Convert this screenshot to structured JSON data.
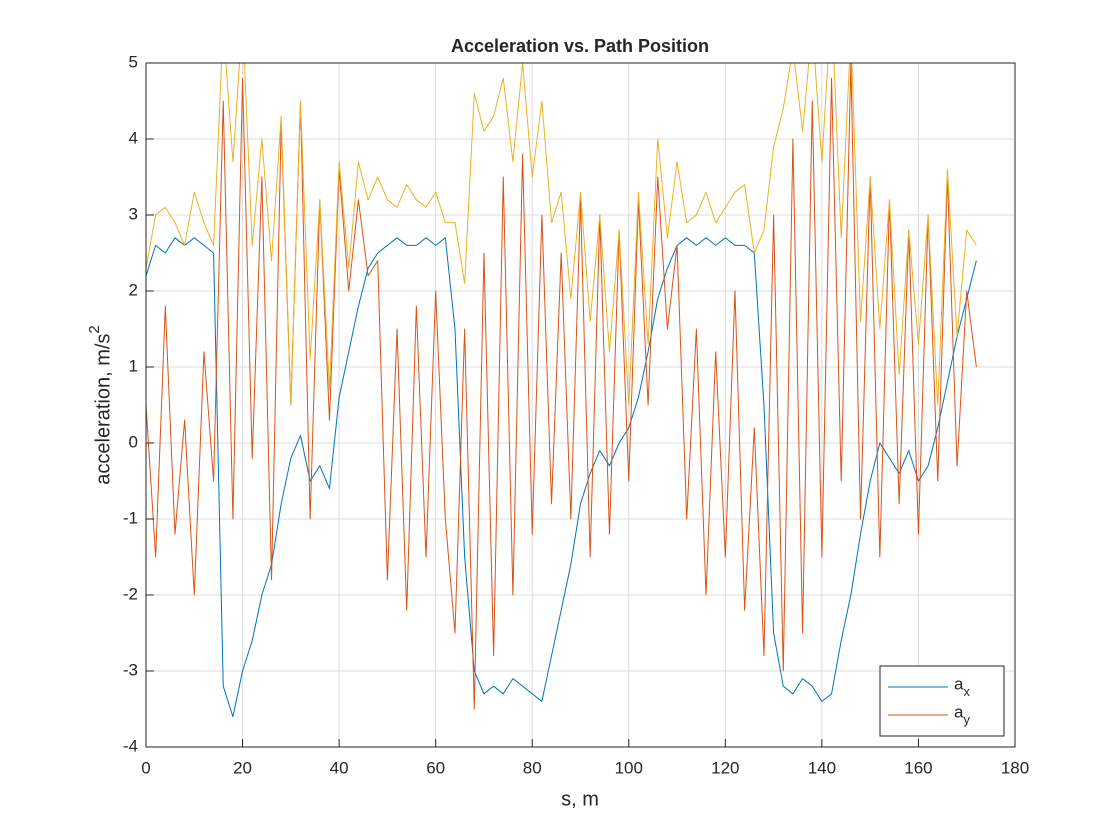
{
  "chart_data": {
    "type": "line",
    "title": "Acceleration vs. Path Position",
    "x_label": "s, m",
    "y_label": "acceleration, m/s^2",
    "xlim": [
      0,
      180
    ],
    "xticks": [
      0,
      20,
      40,
      60,
      80,
      100,
      120,
      140,
      160,
      180
    ],
    "ylim": [
      -4,
      5
    ],
    "yticks": [
      -4,
      -3,
      -2,
      -1,
      0,
      1,
      2,
      3,
      4,
      5
    ],
    "grid": true,
    "legend": "southeast",
    "x": [
      0,
      2,
      4,
      6,
      8,
      10,
      12,
      14,
      16,
      18,
      20,
      22,
      24,
      26,
      28,
      30,
      32,
      34,
      36,
      38,
      40,
      42,
      44,
      46,
      48,
      50,
      52,
      54,
      56,
      58,
      60,
      62,
      64,
      66,
      68,
      70,
      72,
      74,
      76,
      78,
      80,
      82,
      84,
      86,
      88,
      90,
      92,
      94,
      96,
      98,
      100,
      102,
      104,
      106,
      108,
      110,
      112,
      114,
      116,
      118,
      120,
      122,
      124,
      126,
      128,
      130,
      132,
      134,
      136,
      138,
      140,
      142,
      144,
      146,
      148,
      150,
      152,
      154,
      156,
      158,
      160,
      162,
      164,
      166,
      168,
      170,
      172
    ],
    "series": [
      {
        "name": "a_x",
        "color": "#0072bd",
        "values": [
          2.2,
          2.6,
          2.5,
          2.7,
          2.6,
          2.7,
          2.6,
          2.5,
          -3.2,
          -3.6,
          -3.0,
          -2.6,
          -2.0,
          -1.6,
          -0.8,
          -0.2,
          0.1,
          -0.5,
          -0.3,
          -0.6,
          0.6,
          1.2,
          1.8,
          2.3,
          2.5,
          2.6,
          2.7,
          2.6,
          2.6,
          2.7,
          2.6,
          2.7,
          1.5,
          -1.5,
          -3.0,
          -3.3,
          -3.2,
          -3.3,
          -3.1,
          -3.2,
          -3.3,
          -3.4,
          -2.8,
          -2.2,
          -1.6,
          -0.8,
          -0.4,
          -0.1,
          -0.3,
          0.0,
          0.2,
          0.6,
          1.2,
          1.9,
          2.3,
          2.6,
          2.7,
          2.6,
          2.7,
          2.6,
          2.7,
          2.6,
          2.6,
          2.5,
          0.5,
          -2.5,
          -3.2,
          -3.3,
          -3.1,
          -3.2,
          -3.4,
          -3.3,
          -2.6,
          -2.0,
          -1.2,
          -0.5,
          0.0,
          -0.2,
          -0.4,
          -0.1,
          -0.5,
          -0.3,
          0.2,
          0.8,
          1.4,
          1.9,
          2.4
        ]
      },
      {
        "name": "a_y",
        "color": "#d95319",
        "values": [
          0.5,
          -1.5,
          1.8,
          -1.2,
          0.3,
          -2.0,
          1.2,
          -0.5,
          4.5,
          -1.0,
          4.8,
          -0.2,
          3.5,
          -1.8,
          4.2,
          0.5,
          4.5,
          -1.0,
          3.2,
          0.3,
          3.6,
          2.0,
          3.2,
          2.2,
          2.4,
          -1.8,
          1.5,
          -2.2,
          1.8,
          -1.5,
          2.0,
          -1.0,
          -2.5,
          1.5,
          -3.5,
          2.5,
          -2.8,
          3.5,
          -2.0,
          3.8,
          -1.2,
          3.0,
          -0.8,
          2.5,
          -1.0,
          3.2,
          -1.5,
          3.0,
          -1.2,
          2.8,
          -0.5,
          3.2,
          0.5,
          3.5,
          1.5,
          2.6,
          -1.0,
          1.5,
          -2.0,
          1.2,
          -1.5,
          2.0,
          -2.2,
          0.2,
          -2.8,
          3.0,
          -3.0,
          4.0,
          -2.5,
          4.5,
          -1.5,
          4.8,
          -0.5,
          5.0,
          -1.0,
          3.5,
          -1.5,
          3.2,
          -0.8,
          2.8,
          -1.2,
          3.0,
          -0.5,
          3.5,
          -0.3,
          2.0,
          1.0
        ]
      },
      {
        "color": "#edb120",
        "values": [
          2.3,
          3.0,
          3.1,
          2.9,
          2.6,
          3.3,
          2.9,
          2.6,
          5.5,
          3.7,
          5.6,
          2.6,
          4.0,
          2.4,
          4.3,
          0.5,
          4.5,
          1.1,
          3.2,
          0.7,
          3.7,
          2.3,
          3.7,
          3.2,
          3.5,
          3.2,
          3.1,
          3.4,
          3.2,
          3.1,
          3.3,
          2.9,
          2.9,
          2.1,
          4.6,
          4.1,
          4.3,
          4.8,
          3.7,
          5.0,
          3.5,
          4.5,
          2.9,
          3.3,
          1.9,
          3.3,
          1.6,
          3.0,
          1.2,
          2.8,
          0.5,
          3.3,
          1.3,
          4.0,
          2.7,
          3.7,
          2.9,
          3.0,
          3.3,
          2.9,
          3.1,
          3.3,
          3.4,
          2.5,
          2.8,
          3.9,
          4.4,
          5.2,
          4.1,
          5.5,
          3.7,
          5.8,
          2.7,
          5.4,
          1.6,
          3.5,
          1.5,
          3.2,
          0.9,
          2.8,
          1.3,
          3.0,
          0.5,
          3.6,
          1.4,
          2.8,
          2.6
        ]
      }
    ]
  }
}
